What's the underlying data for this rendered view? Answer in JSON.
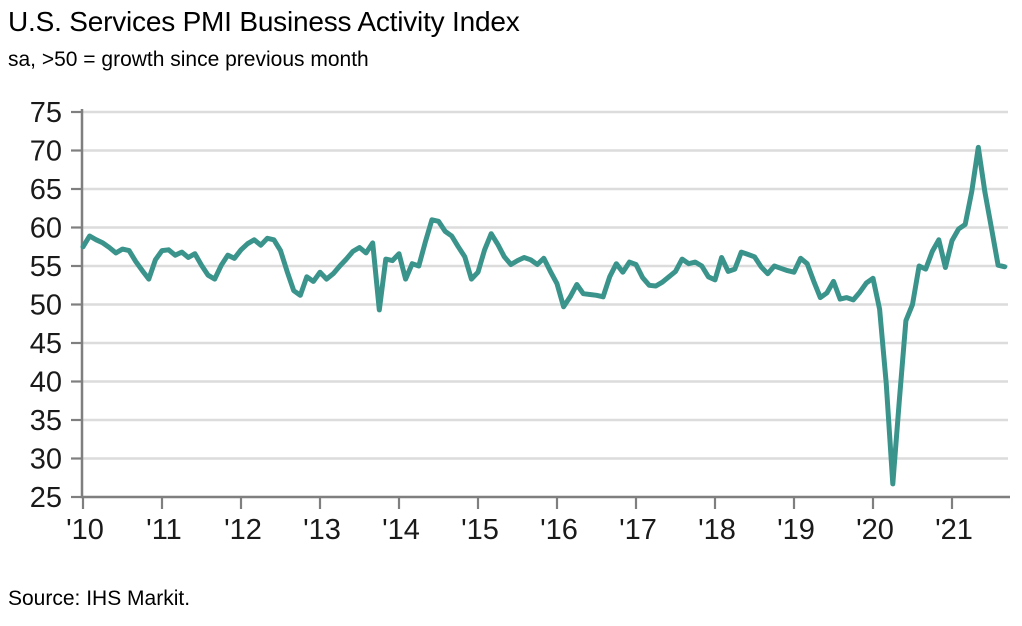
{
  "header": {
    "title": "U.S. Services PMI Business Activity Index",
    "subtitle": "sa, >50 = growth since previous month"
  },
  "footer": {
    "source": "Source: IHS Markit."
  },
  "chart_data": {
    "type": "line",
    "title": "U.S. Services PMI Business Activity Index",
    "subtitle": "sa, >50 = growth since previous month",
    "source": "Source: IHS Markit.",
    "frequency": "monthly",
    "x_start": "2010-01",
    "x_end": "2021-09",
    "x_tick_labels": [
      "'10",
      "'11",
      "'12",
      "'13",
      "'14",
      "'15",
      "'16",
      "'17",
      "'18",
      "'19",
      "'20",
      "'21"
    ],
    "y_ticks": [
      25,
      30,
      35,
      40,
      45,
      50,
      55,
      60,
      65,
      70,
      75
    ],
    "ylim": [
      25,
      75
    ],
    "grid": "horizontal",
    "legend": "none",
    "colors": {
      "line": "#3B948C",
      "axis": "#7F7F7F",
      "grid": "#DCDCDC",
      "text": "#1A1A1A"
    },
    "values": [
      57.5,
      58.9,
      58.4,
      58.0,
      57.4,
      56.7,
      57.2,
      57.0,
      55.6,
      54.4,
      53.3,
      55.8,
      57.0,
      57.1,
      56.4,
      56.8,
      56.1,
      56.6,
      55.1,
      53.8,
      53.3,
      55.1,
      56.4,
      56.0,
      57.1,
      57.9,
      58.4,
      57.7,
      58.6,
      58.4,
      57.0,
      54.3,
      51.8,
      51.2,
      53.6,
      53.0,
      54.2,
      53.3,
      54.0,
      55.0,
      55.9,
      56.9,
      57.4,
      56.7,
      58.0,
      49.3,
      55.9,
      55.7,
      56.6,
      53.3,
      55.3,
      55.0,
      58.1,
      61.0,
      60.8,
      59.5,
      58.9,
      57.5,
      56.2,
      53.3,
      54.2,
      57.1,
      59.2,
      57.8,
      56.2,
      55.2,
      55.7,
      56.1,
      55.8,
      55.2,
      56.0,
      54.3,
      52.7,
      49.7,
      51.0,
      52.6,
      51.4,
      51.3,
      51.2,
      51.0,
      53.6,
      55.3,
      54.2,
      55.5,
      55.2,
      53.5,
      52.5,
      52.4,
      52.9,
      53.6,
      54.3,
      55.9,
      55.3,
      55.5,
      55.0,
      53.6,
      53.2,
      56.1,
      54.3,
      54.6,
      56.8,
      56.5,
      56.2,
      54.9,
      54.0,
      55.0,
      54.7,
      54.4,
      54.2,
      56.0,
      55.3,
      53.0,
      50.9,
      51.5,
      53.0,
      50.7,
      50.9,
      50.6,
      51.6,
      52.8,
      53.4,
      49.4,
      39.8,
      26.7,
      37.5,
      47.9,
      50.0,
      55.0,
      54.6,
      56.9,
      58.4,
      54.8,
      58.3,
      59.8,
      60.4,
      64.7,
      70.4,
      64.6,
      59.9,
      55.1,
      54.9
    ]
  }
}
